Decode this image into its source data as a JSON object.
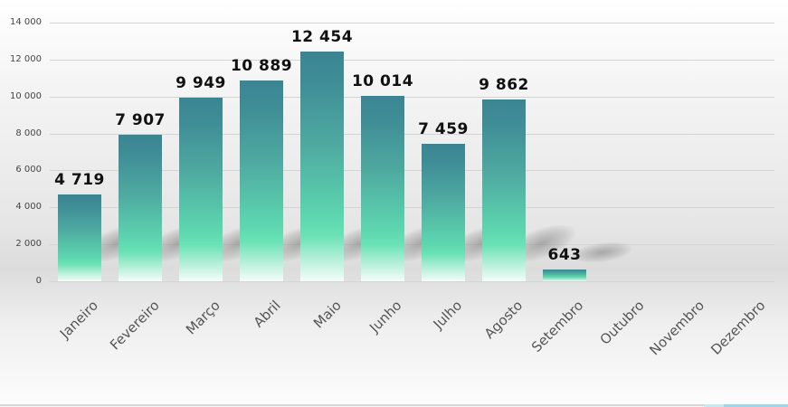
{
  "chart_data": {
    "type": "bar",
    "title": "",
    "xlabel": "",
    "ylabel": "",
    "ylim": [
      0,
      14000
    ],
    "yticks": [
      0,
      2000,
      4000,
      6000,
      8000,
      10000,
      12000,
      14000
    ],
    "ytick_labels": [
      "0",
      "2 000",
      "4 000",
      "6 000",
      "8 000",
      "10 000",
      "12 000",
      "14 000"
    ],
    "grid": true,
    "legend": null,
    "categories": [
      "Janeiro",
      "Fevereiro",
      "Março",
      "Abril",
      "Maio",
      "Junho",
      "Julho",
      "Agosto",
      "Setembro",
      "Outubro",
      "Novembro",
      "Dezembro"
    ],
    "values": [
      4719,
      7907,
      9949,
      10889,
      12454,
      10014,
      7459,
      9862,
      643,
      null,
      null,
      null
    ],
    "data_labels": [
      "4 719",
      "7 907",
      "9 949",
      "10 889",
      "12 454",
      "10 014",
      "7 459",
      "9 862",
      "643",
      "",
      "",
      ""
    ],
    "bar_colors": {
      "top": "#3b8593",
      "middle": "#5dd6b0",
      "bottom": "#f3fdf9"
    }
  }
}
